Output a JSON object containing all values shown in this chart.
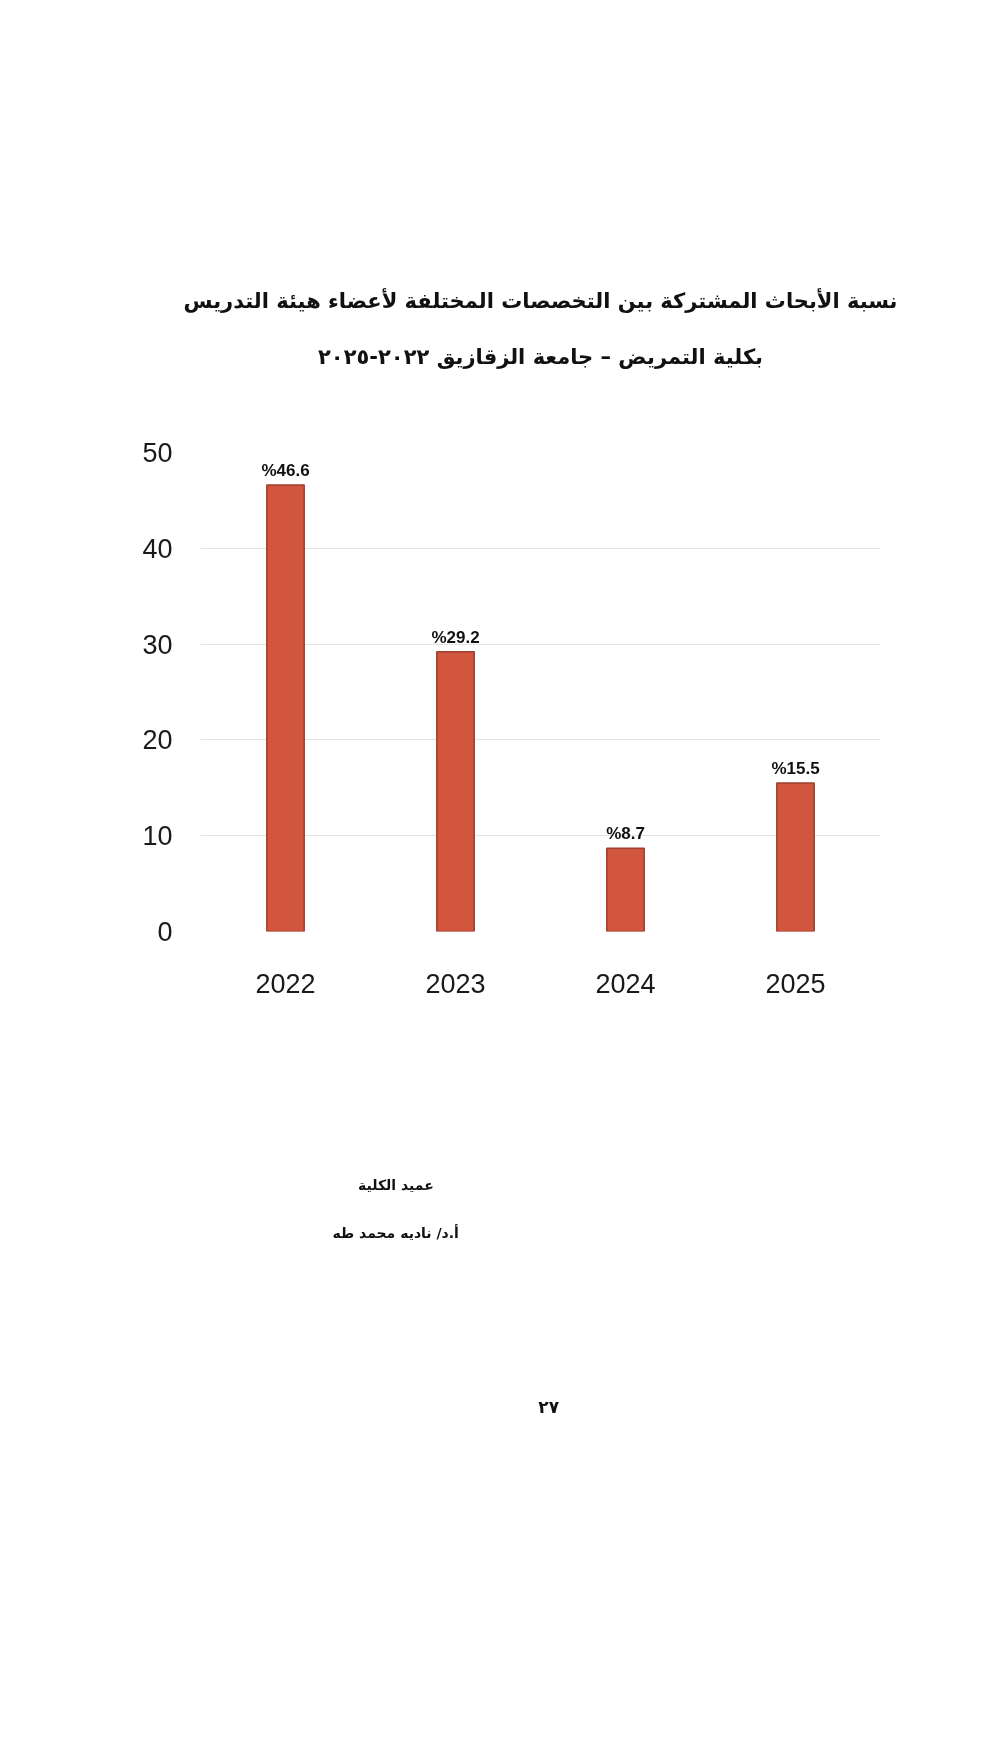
{
  "chart_data": {
    "type": "bar",
    "title": "نسبة الأبحاث المشتركة بين التخصصات المختلفة لأعضاء هيئة التدريس",
    "subtitle": "بكلية التمريض – جامعة الزقازيق ٢٠٢٢-٢٠٢٥",
    "categories": [
      "2022",
      "2023",
      "2024",
      "2025"
    ],
    "values": [
      46.6,
      29.2,
      8.7,
      15.5
    ],
    "value_labels": [
      "%46.6",
      "%29.2",
      "%8.7",
      "%15.5"
    ],
    "color": "#d2553e",
    "ylim": [
      0,
      50
    ],
    "yticks": [
      0,
      10,
      20,
      30,
      40,
      50
    ],
    "grid": "y",
    "annotations": [
      "عميد الكلية",
      "أ.د/ ناديه محمد طه",
      "٢٧"
    ]
  }
}
